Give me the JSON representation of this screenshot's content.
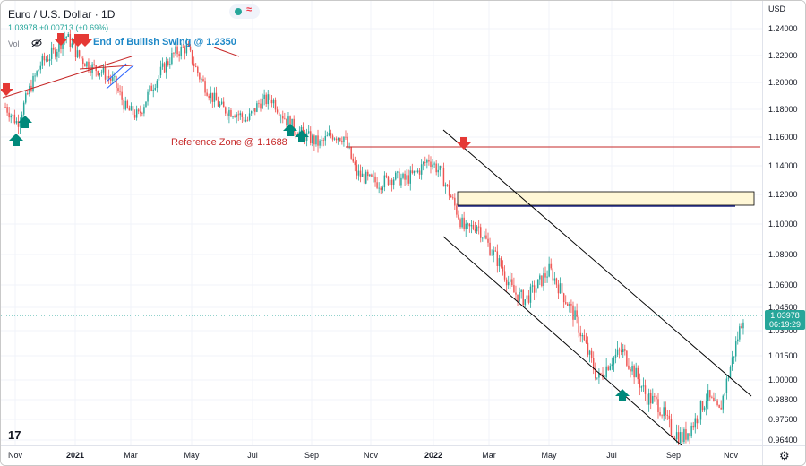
{
  "header": {
    "symbol": "Euro / U.S. Dollar · 1D",
    "quote": "1.03978 +0.00713 (+0.69%)",
    "vol_label": "Vol",
    "logo_text": "17",
    "gear_glyph": "⚙"
  },
  "colors": {
    "up": "#26a69a",
    "down": "#ef5350",
    "annotation_red": "#c62828",
    "annotation_blue": "#1e88c7",
    "zone_fill": "#fff7d6",
    "zone_border": "#1a237e"
  },
  "chart_data": {
    "type": "candlestick",
    "title": "Euro / U.S. Dollar · 1D",
    "currency": "USD",
    "last_price": "1.03978",
    "countdown": "06:19:29",
    "ylim": [
      0.96,
      1.248
    ],
    "y_ticks": [
      "1.24000",
      "1.22000",
      "1.20000",
      "1.18000",
      "1.16000",
      "1.14000",
      "1.12000",
      "1.10000",
      "1.08000",
      "1.06000",
      "1.04500",
      "1.03000",
      "1.01500",
      "1.00000",
      "0.98800",
      "0.97600",
      "0.96400"
    ],
    "x_ticks": [
      {
        "label": "Nov",
        "bold": false
      },
      {
        "label": "2021",
        "bold": true
      },
      {
        "label": "Mar",
        "bold": false
      },
      {
        "label": "May",
        "bold": false
      },
      {
        "label": "Jul",
        "bold": false
      },
      {
        "label": "Sep",
        "bold": false
      },
      {
        "label": "Nov",
        "bold": false
      },
      {
        "label": "2022",
        "bold": true
      },
      {
        "label": "Mar",
        "bold": false
      },
      {
        "label": "May",
        "bold": false
      },
      {
        "label": "Jul",
        "bold": false
      },
      {
        "label": "Sep",
        "bold": false
      },
      {
        "label": "Nov",
        "bold": false
      }
    ],
    "price_path": [
      [
        0,
        1.182
      ],
      [
        1,
        1.17
      ],
      [
        2,
        1.195
      ],
      [
        3,
        1.215
      ],
      [
        4,
        1.222
      ],
      [
        5,
        1.235
      ],
      [
        6,
        1.22
      ],
      [
        7,
        1.212
      ],
      [
        8,
        1.208
      ],
      [
        9,
        1.2
      ],
      [
        10,
        1.18
      ],
      [
        11,
        1.175
      ],
      [
        12,
        1.195
      ],
      [
        13,
        1.21
      ],
      [
        14,
        1.222
      ],
      [
        15,
        1.226
      ],
      [
        16,
        1.205
      ],
      [
        17,
        1.19
      ],
      [
        18,
        1.18
      ],
      [
        19,
        1.178
      ],
      [
        20,
        1.172
      ],
      [
        21,
        1.185
      ],
      [
        22,
        1.188
      ],
      [
        23,
        1.175
      ],
      [
        24,
        1.165
      ],
      [
        25,
        1.16
      ],
      [
        26,
        1.155
      ],
      [
        27,
        1.162
      ],
      [
        28,
        1.16
      ],
      [
        29,
        1.135
      ],
      [
        30,
        1.13
      ],
      [
        31,
        1.128
      ],
      [
        32,
        1.132
      ],
      [
        33,
        1.13
      ],
      [
        34,
        1.135
      ],
      [
        35,
        1.145
      ],
      [
        36,
        1.135
      ],
      [
        37,
        1.115
      ],
      [
        38,
        1.095
      ],
      [
        39,
        1.1
      ],
      [
        40,
        1.085
      ],
      [
        41,
        1.072
      ],
      [
        42,
        1.055
      ],
      [
        43,
        1.05
      ],
      [
        44,
        1.06
      ],
      [
        45,
        1.07
      ],
      [
        46,
        1.055
      ],
      [
        47,
        1.04
      ],
      [
        48,
        1.02
      ],
      [
        49,
        1.0
      ],
      [
        50,
        1.012
      ],
      [
        51,
        1.018
      ],
      [
        52,
        1.005
      ],
      [
        53,
        0.99
      ],
      [
        54,
        0.985
      ],
      [
        55,
        0.97
      ],
      [
        56,
        0.965
      ],
      [
        57,
        0.975
      ],
      [
        58,
        0.99
      ],
      [
        59,
        0.98
      ],
      [
        60,
        1.01
      ],
      [
        61,
        1.04
      ]
    ],
    "annotations": {
      "end_of_swing": "End of Bullish Swing @ 1.2350",
      "reference_zone": "Reference Zone @ 1.1688"
    }
  }
}
